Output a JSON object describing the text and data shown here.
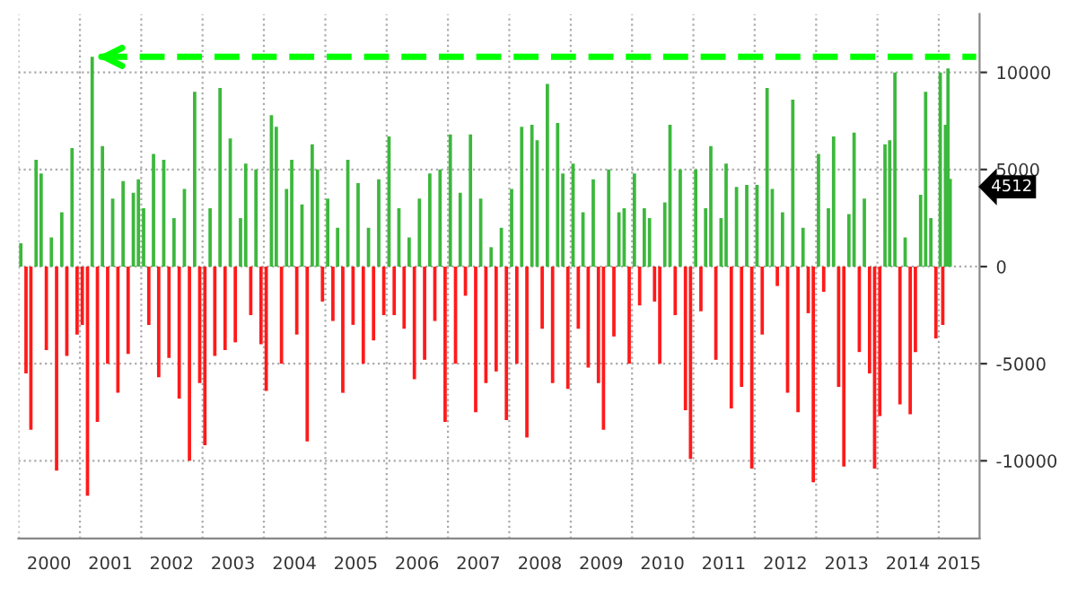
{
  "chart_data": {
    "type": "bar",
    "x": [
      "2000-01-15",
      "2000-02-15",
      "2000-03-15",
      "2000-04-15",
      "2000-05-15",
      "2000-06-15",
      "2000-07-15",
      "2000-08-15",
      "2000-09-15",
      "2000-10-15",
      "2000-11-15",
      "2000-12-15",
      "2001-01-15",
      "2001-02-15",
      "2001-03-15",
      "2001-04-15",
      "2001-05-15",
      "2001-06-15",
      "2001-07-15",
      "2001-08-15",
      "2001-09-15",
      "2001-10-15",
      "2001-11-15",
      "2001-12-15",
      "2002-01-15",
      "2002-02-15",
      "2002-03-15",
      "2002-04-15",
      "2002-05-15",
      "2002-06-15",
      "2002-07-15",
      "2002-08-15",
      "2002-09-15",
      "2002-10-15",
      "2002-11-15",
      "2002-12-15",
      "2003-01-15",
      "2003-02-15",
      "2003-03-15",
      "2003-04-15",
      "2003-05-15",
      "2003-06-15",
      "2003-07-15",
      "2003-08-15",
      "2003-09-15",
      "2003-10-15",
      "2003-11-15",
      "2003-12-15",
      "2004-01-15",
      "2004-02-15",
      "2004-03-15",
      "2004-04-15",
      "2004-05-15",
      "2004-06-15",
      "2004-07-15",
      "2004-08-15",
      "2004-09-15",
      "2004-10-15",
      "2004-11-15",
      "2004-12-15",
      "2005-01-15",
      "2005-02-15",
      "2005-03-15",
      "2005-04-15",
      "2005-05-15",
      "2005-06-15",
      "2005-07-15",
      "2005-08-15",
      "2005-09-15",
      "2005-10-15",
      "2005-11-15",
      "2005-12-15",
      "2006-01-15",
      "2006-02-15",
      "2006-03-15",
      "2006-04-15",
      "2006-05-15",
      "2006-06-15",
      "2006-07-15",
      "2006-08-15",
      "2006-09-15",
      "2006-10-15",
      "2006-11-15",
      "2006-12-15",
      "2007-01-15",
      "2007-02-15",
      "2007-03-15",
      "2007-04-15",
      "2007-05-15",
      "2007-06-15",
      "2007-07-15",
      "2007-08-15",
      "2007-09-15",
      "2007-10-15",
      "2007-11-15",
      "2007-12-15",
      "2008-01-15",
      "2008-02-15",
      "2008-03-15",
      "2008-04-15",
      "2008-05-15",
      "2008-06-15",
      "2008-07-15",
      "2008-08-15",
      "2008-09-15",
      "2008-10-15",
      "2008-11-15",
      "2008-12-15",
      "2009-01-15",
      "2009-02-15",
      "2009-03-15",
      "2009-04-15",
      "2009-05-15",
      "2009-06-15",
      "2009-07-15",
      "2009-08-15",
      "2009-09-15",
      "2009-10-15",
      "2009-11-15",
      "2009-12-15",
      "2010-01-15",
      "2010-02-15",
      "2010-03-15",
      "2010-04-15",
      "2010-05-15",
      "2010-06-15",
      "2010-07-15",
      "2010-08-15",
      "2010-09-15",
      "2010-10-15",
      "2010-11-15",
      "2010-12-15",
      "2011-01-15",
      "2011-02-15",
      "2011-03-15",
      "2011-04-15",
      "2011-05-15",
      "2011-06-15",
      "2011-07-15",
      "2011-08-15",
      "2011-09-15",
      "2011-10-15",
      "2011-11-15",
      "2011-12-15",
      "2012-01-15",
      "2012-02-15",
      "2012-03-15",
      "2012-04-15",
      "2012-05-15",
      "2012-06-15",
      "2012-07-15",
      "2012-08-15",
      "2012-09-15",
      "2012-10-15",
      "2012-11-15",
      "2012-12-15",
      "2013-01-15",
      "2013-02-15",
      "2013-03-15",
      "2013-04-15",
      "2013-05-15",
      "2013-06-15",
      "2013-07-15",
      "2013-08-15",
      "2013-09-15",
      "2013-10-15",
      "2013-11-15",
      "2013-12-15",
      "2014-01-15",
      "2014-02-15",
      "2014-03-15",
      "2014-04-15",
      "2014-05-15",
      "2014-06-15",
      "2014-07-15",
      "2014-08-15",
      "2014-09-15",
      "2014-10-15",
      "2014-11-15",
      "2014-12-15",
      "2015-01-10",
      "2015-01-25",
      "2015-02-10",
      "2015-02-25",
      "2015-03-10"
    ],
    "values": [
      1200,
      -5500,
      -8400,
      5500,
      4800,
      -4300,
      1500,
      -10500,
      2800,
      -4600,
      6100,
      -3500,
      -3000,
      -11800,
      10800,
      -8000,
      6200,
      -5000,
      3500,
      -6500,
      4400,
      -4500,
      3800,
      4500,
      3000,
      -3000,
      5800,
      -5700,
      5500,
      -4700,
      2500,
      -6800,
      4000,
      -10000,
      9000,
      -6000,
      -9200,
      3000,
      -4600,
      9200,
      -4300,
      6600,
      -3900,
      2500,
      5300,
      -2500,
      5000,
      -4000,
      -6400,
      7800,
      7200,
      -5000,
      4000,
      5500,
      -3500,
      3200,
      -9000,
      6300,
      5000,
      -1800,
      3500,
      -2800,
      2000,
      -6500,
      5500,
      -3000,
      4300,
      -5000,
      2000,
      -3800,
      4500,
      -2500,
      6700,
      -2500,
      3000,
      -3200,
      1500,
      -5800,
      3500,
      -4800,
      4800,
      -2800,
      5000,
      -8000,
      6800,
      -5000,
      3800,
      -1500,
      6800,
      -7500,
      3500,
      -6000,
      1000,
      -5400,
      2000,
      -7900,
      4000,
      -5000,
      7200,
      -8800,
      7300,
      6500,
      -3200,
      9400,
      -6000,
      7400,
      4800,
      -6300,
      5300,
      -3200,
      2800,
      -5200,
      4500,
      -6000,
      -8400,
      5000,
      -3600,
      2800,
      3000,
      -5000,
      4800,
      -2000,
      3000,
      2500,
      -1800,
      -5000,
      3300,
      7300,
      -2500,
      5000,
      -7400,
      -9900,
      5000,
      -2300,
      3000,
      6200,
      -4800,
      2500,
      5300,
      -7300,
      4100,
      -6200,
      4200,
      -10400,
      4200,
      -3500,
      9200,
      4000,
      -1000,
      2800,
      -6500,
      8600,
      -7500,
      2000,
      -2400,
      -11100,
      5800,
      -1300,
      3000,
      6700,
      -6200,
      -10300,
      2700,
      6900,
      -4400,
      3500,
      -5500,
      -10400,
      -7700,
      6300,
      6500,
      10000,
      -7100,
      1500,
      -7600,
      -4400,
      3700,
      9000,
      2500,
      -3700,
      10000,
      -3000,
      7300,
      10200,
      4512
    ],
    "colors": [
      "#3cb83c",
      "#ff1a1a",
      "#ff1a1a",
      "#3cb83c",
      "#3cb83c",
      "#ff1a1a",
      "#3cb83c",
      "#ff1a1a",
      "#3cb83c",
      "#ff1a1a",
      "#3cb83c",
      "#ff1a1a",
      "#ff1a1a",
      "#ff1a1a",
      "#3cb83c",
      "#ff1a1a",
      "#3cb83c",
      "#ff1a1a",
      "#3cb83c",
      "#ff1a1a",
      "#3cb83c",
      "#ff1a1a",
      "#3cb83c",
      "#3cb83c",
      "#3cb83c",
      "#ff1a1a",
      "#3cb83c",
      "#ff1a1a",
      "#3cb83c",
      "#ff1a1a",
      "#3cb83c",
      "#ff1a1a",
      "#3cb83c",
      "#ff1a1a",
      "#3cb83c",
      "#ff1a1a",
      "#ff1a1a",
      "#3cb83c",
      "#ff1a1a",
      "#3cb83c",
      "#ff1a1a",
      "#3cb83c",
      "#ff1a1a",
      "#3cb83c",
      "#3cb83c",
      "#ff1a1a",
      "#3cb83c",
      "#ff1a1a",
      "#ff1a1a",
      "#3cb83c",
      "#3cb83c",
      "#ff1a1a",
      "#3cb83c",
      "#3cb83c",
      "#ff1a1a",
      "#3cb83c",
      "#ff1a1a",
      "#3cb83c",
      "#3cb83c",
      "#ff1a1a",
      "#3cb83c",
      "#ff1a1a",
      "#3cb83c",
      "#ff1a1a",
      "#3cb83c",
      "#ff1a1a",
      "#3cb83c",
      "#ff1a1a",
      "#3cb83c",
      "#ff1a1a",
      "#3cb83c",
      "#ff1a1a",
      "#3cb83c",
      "#ff1a1a",
      "#3cb83c",
      "#ff1a1a",
      "#3cb83c",
      "#ff1a1a",
      "#3cb83c",
      "#ff1a1a",
      "#3cb83c",
      "#ff1a1a",
      "#3cb83c",
      "#ff1a1a",
      "#3cb83c",
      "#ff1a1a",
      "#3cb83c",
      "#ff1a1a",
      "#3cb83c",
      "#ff1a1a",
      "#3cb83c",
      "#ff1a1a",
      "#3cb83c",
      "#ff1a1a",
      "#3cb83c",
      "#ff1a1a",
      "#3cb83c",
      "#ff1a1a",
      "#3cb83c",
      "#ff1a1a",
      "#3cb83c",
      "#3cb83c",
      "#ff1a1a",
      "#3cb83c",
      "#ff1a1a",
      "#3cb83c",
      "#3cb83c",
      "#ff1a1a",
      "#3cb83c",
      "#ff1a1a",
      "#3cb83c",
      "#ff1a1a",
      "#3cb83c",
      "#ff1a1a",
      "#ff1a1a",
      "#3cb83c",
      "#ff1a1a",
      "#3cb83c",
      "#3cb83c",
      "#ff1a1a",
      "#3cb83c",
      "#ff1a1a",
      "#3cb83c",
      "#3cb83c",
      "#ff1a1a",
      "#ff1a1a",
      "#3cb83c",
      "#3cb83c",
      "#ff1a1a",
      "#3cb83c",
      "#ff1a1a",
      "#ff1a1a",
      "#3cb83c",
      "#ff1a1a",
      "#3cb83c",
      "#3cb83c",
      "#ff1a1a",
      "#3cb83c",
      "#3cb83c",
      "#ff1a1a",
      "#3cb83c",
      "#ff1a1a",
      "#3cb83c",
      "#ff1a1a",
      "#3cb83c",
      "#ff1a1a",
      "#3cb83c",
      "#3cb83c",
      "#ff1a1a",
      "#3cb83c",
      "#ff1a1a",
      "#3cb83c",
      "#ff1a1a",
      "#3cb83c",
      "#ff1a1a",
      "#ff1a1a",
      "#3cb83c",
      "#ff1a1a",
      "#3cb83c",
      "#3cb83c",
      "#ff1a1a",
      "#ff1a1a",
      "#3cb83c",
      "#3cb83c",
      "#ff1a1a",
      "#3cb83c",
      "#ff1a1a",
      "#ff1a1a",
      "#ff1a1a",
      "#3cb83c",
      "#3cb83c",
      "#3cb83c",
      "#ff1a1a",
      "#3cb83c",
      "#ff1a1a",
      "#ff1a1a",
      "#3cb83c",
      "#3cb83c",
      "#3cb83c",
      "#ff1a1a",
      "#3cb83c",
      "#ff1a1a",
      "#3cb83c",
      "#3cb83c",
      "#3cb83c"
    ],
    "xlim": [
      "2000-01-01",
      "2015-09-01"
    ],
    "xticks": [
      {
        "value": "2000-01-01",
        "label": null
      },
      {
        "value": "2000-07-01",
        "label": "2000"
      },
      {
        "value": "2001-01-01",
        "label": null
      },
      {
        "value": "2001-07-01",
        "label": "2001"
      },
      {
        "value": "2002-01-01",
        "label": null
      },
      {
        "value": "2002-07-01",
        "label": "2002"
      },
      {
        "value": "2003-01-01",
        "label": null
      },
      {
        "value": "2003-07-01",
        "label": "2003"
      },
      {
        "value": "2004-01-01",
        "label": null
      },
      {
        "value": "2004-07-01",
        "label": "2004"
      },
      {
        "value": "2005-01-01",
        "label": null
      },
      {
        "value": "2005-07-01",
        "label": "2005"
      },
      {
        "value": "2006-01-01",
        "label": null
      },
      {
        "value": "2006-07-01",
        "label": "2006"
      },
      {
        "value": "2007-01-01",
        "label": null
      },
      {
        "value": "2007-07-01",
        "label": "2007"
      },
      {
        "value": "2008-01-01",
        "label": null
      },
      {
        "value": "2008-07-01",
        "label": "2008"
      },
      {
        "value": "2009-01-01",
        "label": null
      },
      {
        "value": "2009-07-01",
        "label": "2009"
      },
      {
        "value": "2010-01-01",
        "label": null
      },
      {
        "value": "2010-07-01",
        "label": "2010"
      },
      {
        "value": "2011-01-01",
        "label": null
      },
      {
        "value": "2011-07-01",
        "label": "2011"
      },
      {
        "value": "2012-01-01",
        "label": null
      },
      {
        "value": "2012-07-01",
        "label": "2012"
      },
      {
        "value": "2013-01-01",
        "label": null
      },
      {
        "value": "2013-07-01",
        "label": "2013"
      },
      {
        "value": "2014-01-01",
        "label": null
      },
      {
        "value": "2014-07-01",
        "label": "2014"
      },
      {
        "value": "2015-01-01",
        "label": null
      },
      {
        "value": "2015-05-01",
        "label": "2015"
      }
    ],
    "ylim": [
      -14000,
      13000
    ],
    "yticks": [
      -10000,
      -5000,
      0,
      5000,
      10000
    ],
    "grid": true,
    "ref_lines": [
      {
        "axis": "y",
        "value": 10800,
        "color": "#00ff00",
        "line_style": "dashed"
      }
    ],
    "annotations": [
      "4512"
    ]
  }
}
